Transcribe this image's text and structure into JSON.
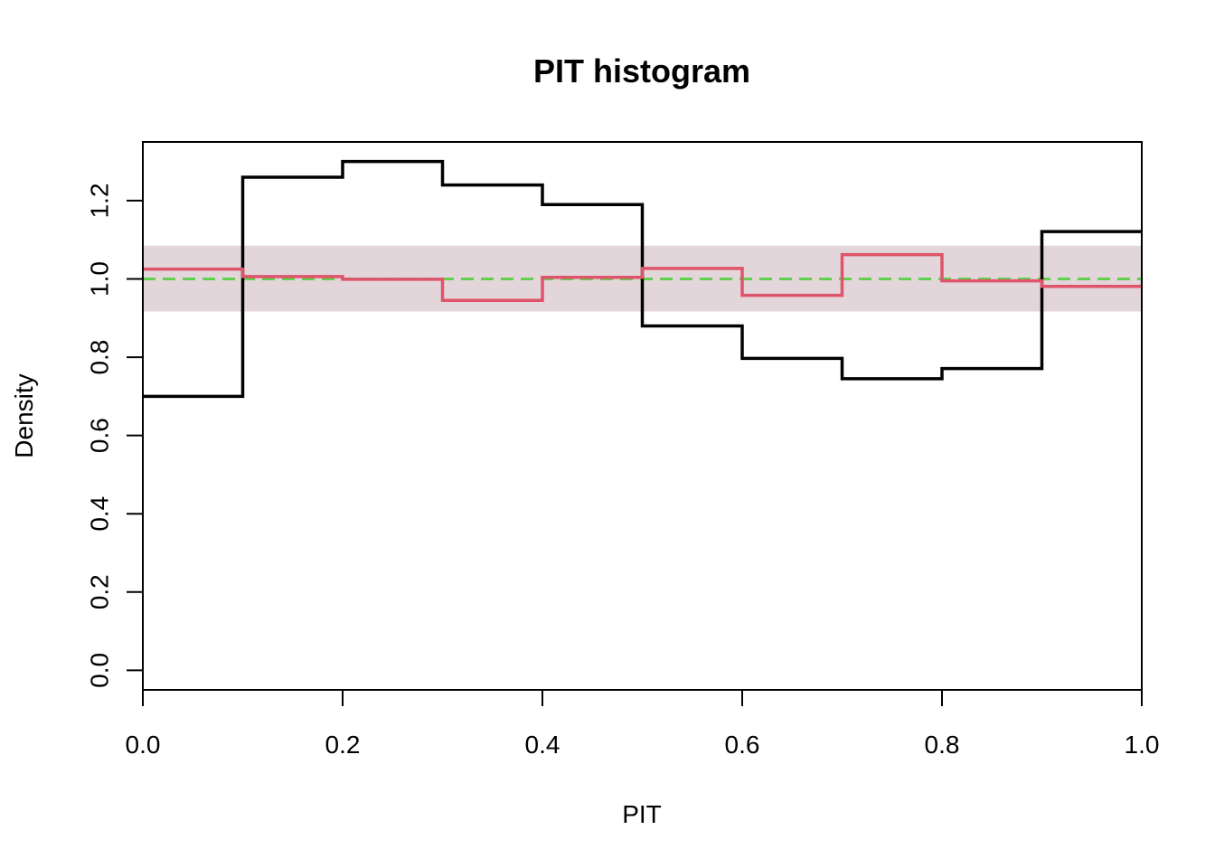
{
  "chart_data": {
    "type": "line",
    "title": "PIT histogram",
    "xlabel": "PIT",
    "ylabel": "Density",
    "xlim": [
      0,
      1
    ],
    "ylim": [
      -0.05,
      1.35
    ],
    "xticks": [
      "0.0",
      "0.2",
      "0.4",
      "0.6",
      "0.8",
      "1.0"
    ],
    "yticks": [
      "0.0",
      "0.2",
      "0.4",
      "0.6",
      "0.8",
      "1.0",
      "1.2"
    ],
    "bin_edges": [
      0.0,
      0.1,
      0.2,
      0.3,
      0.4,
      0.5,
      0.6,
      0.7,
      0.8,
      0.9,
      1.0
    ],
    "band": {
      "lower": 0.917,
      "upper": 1.085,
      "color": "#e3d6da"
    },
    "reference": {
      "y": 1.0,
      "color": "#61d04f",
      "style": "dashed"
    },
    "series": [
      {
        "values": [
          0.7,
          1.26,
          1.3,
          1.24,
          1.19,
          0.88,
          0.797,
          0.745,
          0.771,
          1.121
        ],
        "color": "#000000"
      },
      {
        "values": [
          1.025,
          1.006,
          0.999,
          0.945,
          1.004,
          1.027,
          0.958,
          1.062,
          0.995,
          0.981
        ],
        "color": "#df536b"
      }
    ]
  }
}
